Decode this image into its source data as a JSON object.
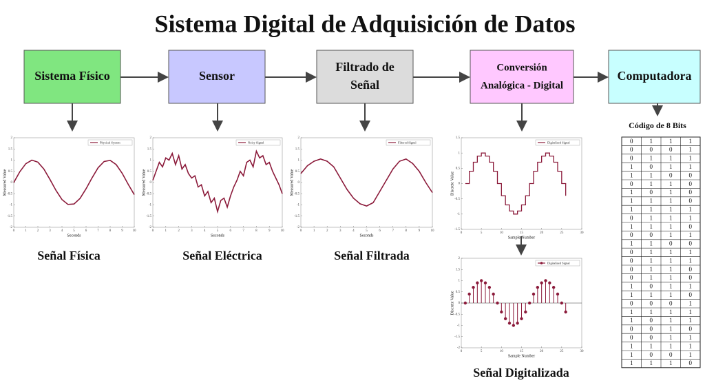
{
  "title": "Sistema Digital de Adquisición de Datos",
  "boxes": [
    {
      "lines": [
        "Sistema Físico"
      ],
      "color": "#80e680"
    },
    {
      "lines": [
        "Sensor"
      ],
      "color": "#c8c8ff"
    },
    {
      "lines": [
        "Filtrado de",
        "Señal"
      ],
      "color": "#dcdcdc"
    },
    {
      "lines": [
        "Conversión",
        "Analógica - Digital"
      ],
      "color": "#ffc8ff"
    },
    {
      "lines": [
        "Computadora"
      ],
      "color": "#c8ffff"
    }
  ],
  "plots": [
    {
      "type": "line",
      "legend": "Physical System",
      "xlabel": "Seconds",
      "ylabel": "Measured Value",
      "caption": "Señal Física",
      "color": "#8b1a3a",
      "xlim": [
        0,
        10
      ],
      "ylim": [
        -2,
        2
      ],
      "xticks": [
        0,
        1,
        2,
        3,
        4,
        5,
        6,
        7,
        8,
        9,
        10
      ],
      "yticks": [
        -2,
        -1.5,
        -1,
        -0.5,
        0,
        0.5,
        1,
        1.5,
        2
      ],
      "x": [
        0,
        0.5,
        1,
        1.5,
        2,
        2.5,
        3,
        3.5,
        4,
        4.5,
        5,
        5.5,
        6,
        6.5,
        7,
        7.5,
        8,
        8.5,
        9,
        9.5,
        10
      ],
      "values": [
        0,
        0.48,
        0.84,
        1.0,
        0.91,
        0.6,
        0.14,
        -0.35,
        -0.76,
        -0.98,
        -0.96,
        -0.71,
        -0.28,
        0.21,
        0.66,
        0.94,
        0.99,
        0.8,
        0.41,
        -0.08,
        -0.54
      ]
    },
    {
      "type": "line",
      "legend": "Noisy Signal",
      "xlabel": "Seconds",
      "ylabel": "Measured Value",
      "caption": "Señal Eléctrica",
      "color": "#8b1a3a",
      "xlim": [
        0,
        10
      ],
      "ylim": [
        -2,
        2
      ],
      "xticks": [
        0,
        1,
        2,
        3,
        4,
        5,
        6,
        7,
        8,
        9,
        10
      ],
      "yticks": [
        -2,
        -1.5,
        -1,
        -0.5,
        0,
        0.5,
        1,
        1.5,
        2
      ],
      "x": [
        0,
        0.25,
        0.5,
        0.75,
        1,
        1.25,
        1.5,
        1.75,
        2,
        2.25,
        2.5,
        2.75,
        3,
        3.25,
        3.5,
        3.75,
        4,
        4.25,
        4.5,
        4.75,
        5,
        5.25,
        5.5,
        5.75,
        6,
        6.25,
        6.5,
        6.75,
        7,
        7.25,
        7.5,
        7.75,
        8,
        8.25,
        8.5,
        8.75,
        9,
        9.25,
        9.5,
        9.75,
        10
      ],
      "values": [
        0.1,
        0.5,
        0.9,
        0.7,
        1.1,
        1.0,
        1.3,
        0.8,
        1.2,
        0.6,
        0.8,
        0.4,
        0.2,
        0.3,
        -0.2,
        -0.1,
        -0.6,
        -0.4,
        -0.9,
        -0.7,
        -1.3,
        -0.8,
        -0.7,
        -1.1,
        -0.6,
        -0.2,
        0.1,
        0.5,
        0.3,
        0.9,
        1.0,
        0.7,
        1.4,
        1.1,
        1.2,
        0.8,
        0.9,
        0.5,
        0.2,
        -0.1,
        -0.5
      ]
    },
    {
      "type": "line",
      "legend": "Filtered Signal",
      "xlabel": "Seconds",
      "ylabel": "Measured Value",
      "caption": "Señal Filtrada",
      "color": "#8b1a3a",
      "xlim": [
        0,
        10
      ],
      "ylim": [
        -2,
        2
      ],
      "xticks": [
        0,
        1,
        2,
        3,
        4,
        5,
        6,
        7,
        8,
        9,
        10
      ],
      "yticks": [
        -2,
        -1.5,
        -1,
        -0.5,
        0,
        0.5,
        1,
        1.5,
        2
      ],
      "x": [
        0,
        0.5,
        1,
        1.5,
        2,
        2.5,
        3,
        3.5,
        4,
        4.5,
        5,
        5.5,
        6,
        6.5,
        7,
        7.5,
        8,
        8.5,
        9,
        9.5,
        10
      ],
      "values": [
        0.4,
        0.75,
        0.95,
        1.05,
        0.95,
        0.7,
        0.2,
        -0.3,
        -0.7,
        -0.95,
        -1.05,
        -0.9,
        -0.4,
        0.1,
        0.6,
        0.95,
        1.05,
        0.85,
        0.5,
        0.0,
        -0.45
      ]
    },
    {
      "type": "stairs",
      "legend": "Digitalized Signal",
      "xlabel": "Sample Number",
      "ylabel": "Discrete Value",
      "caption": null,
      "color": "#8b1a3a",
      "xlim": [
        0,
        30
      ],
      "ylim": [
        -1.5,
        1.5
      ],
      "xticks": [
        0,
        5,
        10,
        15,
        20,
        25,
        30
      ],
      "yticks": [
        -1.5,
        -1,
        -0.5,
        0,
        0.5,
        1,
        1.5
      ],
      "x": [
        1,
        2,
        3,
        4,
        5,
        6,
        7,
        8,
        9,
        10,
        11,
        12,
        13,
        14,
        15,
        16,
        17,
        18,
        19,
        20,
        21,
        22,
        23,
        24,
        25,
        26
      ],
      "values": [
        0,
        0.4,
        0.7,
        0.9,
        1.0,
        0.9,
        0.7,
        0.4,
        0,
        -0.4,
        -0.7,
        -0.9,
        -1.0,
        -0.9,
        -0.7,
        -0.4,
        0,
        0.4,
        0.7,
        0.9,
        1.0,
        0.9,
        0.7,
        0.4,
        0,
        -0.4
      ]
    },
    {
      "type": "stem",
      "legend": "Digitalized Signal",
      "xlabel": "Sample Number",
      "ylabel": "Discrete Value",
      "caption": "Señal Digitalizada",
      "color": "#8b1a3a",
      "xlim": [
        0,
        30
      ],
      "ylim": [
        -2,
        2
      ],
      "xticks": [
        0,
        5,
        10,
        15,
        20,
        25,
        30
      ],
      "yticks": [
        -2,
        -1.5,
        -1,
        -0.5,
        0,
        0.5,
        1,
        1.5,
        2
      ],
      "x": [
        1,
        2,
        3,
        4,
        5,
        6,
        7,
        8,
        9,
        10,
        11,
        12,
        13,
        14,
        15,
        16,
        17,
        18,
        19,
        20,
        21,
        22,
        23,
        24,
        25,
        26
      ],
      "values": [
        0,
        0.4,
        0.7,
        0.9,
        1.0,
        0.9,
        0.7,
        0.4,
        0,
        -0.4,
        -0.7,
        -0.9,
        -1.0,
        -0.9,
        -0.7,
        -0.4,
        0,
        0.4,
        0.7,
        0.9,
        1.0,
        0.9,
        0.7,
        0.4,
        0,
        -0.4
      ]
    }
  ],
  "table": {
    "title": "Código de 8 Bits",
    "rows": [
      [
        0,
        1,
        1,
        1
      ],
      [
        0,
        0,
        0,
        1
      ],
      [
        0,
        1,
        1,
        1
      ],
      [
        1,
        0,
        1,
        1
      ],
      [
        1,
        1,
        0,
        0
      ],
      [
        0,
        1,
        1,
        0
      ],
      [
        1,
        0,
        1,
        0
      ],
      [
        1,
        1,
        1,
        0
      ],
      [
        1,
        1,
        1,
        1
      ],
      [
        0,
        1,
        1,
        1
      ],
      [
        1,
        1,
        1,
        0
      ],
      [
        0,
        0,
        1,
        1
      ],
      [
        1,
        1,
        0,
        0
      ],
      [
        0,
        1,
        1,
        1
      ],
      [
        0,
        1,
        1,
        1
      ],
      [
        0,
        1,
        1,
        0
      ],
      [
        0,
        1,
        1,
        0
      ],
      [
        1,
        0,
        1,
        1
      ],
      [
        1,
        1,
        1,
        0
      ],
      [
        0,
        0,
        0,
        1
      ],
      [
        1,
        1,
        1,
        1
      ],
      [
        1,
        0,
        1,
        1
      ],
      [
        0,
        0,
        1,
        0
      ],
      [
        0,
        0,
        1,
        1
      ],
      [
        1,
        1,
        1,
        1
      ],
      [
        1,
        0,
        0,
        1
      ],
      [
        1,
        1,
        1,
        0
      ]
    ]
  }
}
